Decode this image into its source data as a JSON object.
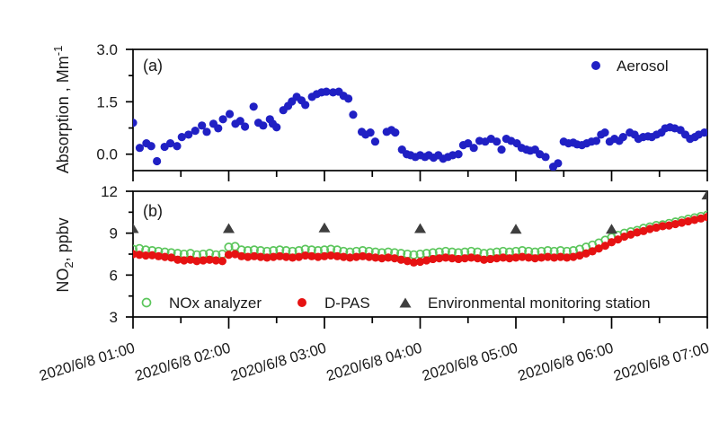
{
  "figure": {
    "background": "#ffffff",
    "axis_color": "#000000",
    "text_color": "#1a1a1a"
  },
  "x_axis": {
    "tick_hours": [
      1,
      2,
      3,
      4,
      5,
      6,
      7
    ],
    "minor_tick_hours": [
      1.5,
      2.5,
      3.5,
      4.5,
      5.5,
      6.5
    ],
    "tick_labels": [
      "2020/6/8 01:00",
      "2020/6/8 02:00",
      "2020/6/8 03:00",
      "2020/6/8 04:00",
      "2020/6/8 05:00",
      "2020/6/8 06:00",
      "2020/6/8 07:00"
    ],
    "label_rotation_deg": -17
  },
  "panels": {
    "a": {
      "tag": "(a)",
      "ylabel": {
        "prefix": "Absorption , Mm",
        "sup": "-1"
      },
      "yticks": [
        {
          "label": "3.0",
          "value": 3.0
        },
        {
          "label": "1.5",
          "value": 1.5
        },
        {
          "label": "0.0",
          "value": 0.0
        }
      ],
      "minor_yticks": [
        2.25,
        0.75
      ],
      "legend": [
        {
          "label": "Aerosol",
          "marker": "circle",
          "color": "#2020c4"
        }
      ]
    },
    "b": {
      "tag": "(b)",
      "ylabel": {
        "prefix": "NO",
        "sub": "2",
        "suffix": ", ppbv"
      },
      "yticks": [
        {
          "label": "12",
          "value": 12
        },
        {
          "label": "9",
          "value": 9
        },
        {
          "label": "6",
          "value": 6
        },
        {
          "label": "3",
          "value": 3
        }
      ],
      "minor_yticks": [
        10.5,
        7.5,
        4.5
      ],
      "legend": [
        {
          "label": "NOx analyzer",
          "marker": "open-circle",
          "color": "#5cc65c"
        },
        {
          "label": "D-PAS",
          "marker": "circle",
          "color": "#e61212"
        },
        {
          "label": "Environmental monitoring station",
          "marker": "triangle",
          "color": "#3e3e3e"
        }
      ]
    }
  },
  "chart_data": [
    {
      "type": "scatter",
      "panel": "a",
      "ylabel": "Absorption , Mm^-1",
      "xlim_hours": [
        1,
        7
      ],
      "ylim": [
        -0.47,
        3.0
      ],
      "grid": false,
      "legend_position": "top-right-inside",
      "series": [
        {
          "name": "Aerosol",
          "marker": "circle",
          "fill": "#2020c4",
          "points": [
            [
              1.0,
              0.9
            ],
            [
              1.07,
              0.18
            ],
            [
              1.14,
              0.31
            ],
            [
              1.19,
              0.23
            ],
            [
              1.25,
              -0.2
            ],
            [
              1.33,
              0.21
            ],
            [
              1.39,
              0.31
            ],
            [
              1.46,
              0.23
            ],
            [
              1.51,
              0.49
            ],
            [
              1.58,
              0.56
            ],
            [
              1.65,
              0.67
            ],
            [
              1.72,
              0.82
            ],
            [
              1.77,
              0.64
            ],
            [
              1.84,
              0.87
            ],
            [
              1.89,
              0.74
            ],
            [
              1.94,
              1.0
            ],
            [
              2.01,
              1.15
            ],
            [
              2.07,
              0.87
            ],
            [
              2.12,
              0.95
            ],
            [
              2.17,
              0.79
            ],
            [
              2.26,
              1.36
            ],
            [
              2.31,
              0.9
            ],
            [
              2.36,
              0.82
            ],
            [
              2.43,
              1.0
            ],
            [
              2.46,
              0.87
            ],
            [
              2.5,
              0.77
            ],
            [
              2.57,
              1.26
            ],
            [
              2.62,
              1.38
            ],
            [
              2.66,
              1.51
            ],
            [
              2.71,
              1.64
            ],
            [
              2.76,
              1.54
            ],
            [
              2.8,
              1.41
            ],
            [
              2.87,
              1.64
            ],
            [
              2.92,
              1.72
            ],
            [
              2.97,
              1.77
            ],
            [
              3.02,
              1.79
            ],
            [
              3.09,
              1.77
            ],
            [
              3.15,
              1.79
            ],
            [
              3.2,
              1.67
            ],
            [
              3.25,
              1.59
            ],
            [
              3.3,
              1.13
            ],
            [
              3.39,
              0.64
            ],
            [
              3.43,
              0.56
            ],
            [
              3.48,
              0.62
            ],
            [
              3.53,
              0.36
            ],
            [
              3.65,
              0.64
            ],
            [
              3.7,
              0.69
            ],
            [
              3.74,
              0.62
            ],
            [
              3.81,
              0.13
            ],
            [
              3.86,
              0.0
            ],
            [
              3.9,
              -0.03
            ],
            [
              3.95,
              -0.08
            ],
            [
              4.0,
              -0.03
            ],
            [
              4.05,
              -0.08
            ],
            [
              4.09,
              -0.03
            ],
            [
              4.14,
              -0.1
            ],
            [
              4.19,
              -0.03
            ],
            [
              4.24,
              -0.13
            ],
            [
              4.29,
              -0.08
            ],
            [
              4.34,
              -0.03
            ],
            [
              4.4,
              0.0
            ],
            [
              4.45,
              0.26
            ],
            [
              4.5,
              0.31
            ],
            [
              4.56,
              0.18
            ],
            [
              4.62,
              0.38
            ],
            [
              4.68,
              0.36
            ],
            [
              4.74,
              0.44
            ],
            [
              4.8,
              0.36
            ],
            [
              4.85,
              0.13
            ],
            [
              4.9,
              0.44
            ],
            [
              4.95,
              0.38
            ],
            [
              5.01,
              0.31
            ],
            [
              5.06,
              0.18
            ],
            [
              5.11,
              0.13
            ],
            [
              5.15,
              0.1
            ],
            [
              5.2,
              0.13
            ],
            [
              5.25,
              0.0
            ],
            [
              5.31,
              -0.08
            ],
            [
              5.39,
              -0.36
            ],
            [
              5.44,
              -0.26
            ],
            [
              5.5,
              0.36
            ],
            [
              5.55,
              0.31
            ],
            [
              5.6,
              0.33
            ],
            [
              5.64,
              0.28
            ],
            [
              5.69,
              0.26
            ],
            [
              5.74,
              0.31
            ],
            [
              5.79,
              0.36
            ],
            [
              5.84,
              0.38
            ],
            [
              5.89,
              0.56
            ],
            [
              5.93,
              0.62
            ],
            [
              5.98,
              0.36
            ],
            [
              6.03,
              0.44
            ],
            [
              6.08,
              0.38
            ],
            [
              6.12,
              0.49
            ],
            [
              6.19,
              0.62
            ],
            [
              6.24,
              0.56
            ],
            [
              6.28,
              0.44
            ],
            [
              6.33,
              0.49
            ],
            [
              6.38,
              0.51
            ],
            [
              6.42,
              0.49
            ],
            [
              6.47,
              0.56
            ],
            [
              6.52,
              0.62
            ],
            [
              6.56,
              0.74
            ],
            [
              6.61,
              0.77
            ],
            [
              6.66,
              0.74
            ],
            [
              6.72,
              0.69
            ],
            [
              6.77,
              0.56
            ],
            [
              6.82,
              0.44
            ],
            [
              6.87,
              0.49
            ],
            [
              6.91,
              0.56
            ],
            [
              6.97,
              0.62
            ]
          ]
        }
      ]
    },
    {
      "type": "scatter",
      "panel": "b",
      "ylabel": "NO2, ppbv",
      "xlim_hours": [
        1,
        7
      ],
      "ylim": [
        3,
        12
      ],
      "grid": false,
      "legend_position": "bottom-inside",
      "series": [
        {
          "name": "NOx analyzer",
          "marker": "open-circle",
          "stroke": "#5cc65c",
          "x_start_hour": 1,
          "x_step_minutes": 4,
          "values": [
            7.85,
            7.9,
            7.8,
            7.75,
            7.7,
            7.65,
            7.6,
            7.55,
            7.5,
            7.55,
            7.45,
            7.5,
            7.55,
            7.45,
            7.5,
            8.0,
            8.05,
            7.8,
            7.75,
            7.8,
            7.75,
            7.7,
            7.75,
            7.8,
            7.75,
            7.7,
            7.75,
            7.85,
            7.8,
            7.75,
            7.8,
            7.85,
            7.8,
            7.7,
            7.65,
            7.7,
            7.75,
            7.7,
            7.65,
            7.6,
            7.65,
            7.6,
            7.55,
            7.5,
            7.45,
            7.5,
            7.55,
            7.6,
            7.65,
            7.7,
            7.65,
            7.6,
            7.65,
            7.7,
            7.65,
            7.55,
            7.6,
            7.65,
            7.7,
            7.65,
            7.7,
            7.75,
            7.7,
            7.65,
            7.7,
            7.75,
            7.7,
            7.75,
            7.7,
            7.75,
            7.85,
            8.0,
            8.15,
            8.3,
            8.5,
            8.7,
            8.85,
            9.0,
            9.1,
            9.2,
            9.35,
            9.45,
            9.55,
            9.6,
            9.7,
            9.8,
            9.9,
            10.0,
            10.1,
            10.2,
            10.3
          ]
        },
        {
          "name": "D-PAS",
          "marker": "circle",
          "fill": "#e61212",
          "x_start_hour": 1,
          "x_step_minutes": 4,
          "values": [
            7.5,
            7.45,
            7.4,
            7.42,
            7.35,
            7.3,
            7.25,
            7.1,
            7.05,
            7.1,
            7.0,
            7.05,
            7.1,
            7.05,
            7.0,
            7.45,
            7.5,
            7.35,
            7.3,
            7.35,
            7.3,
            7.25,
            7.3,
            7.35,
            7.3,
            7.25,
            7.3,
            7.4,
            7.35,
            7.3,
            7.35,
            7.4,
            7.35,
            7.3,
            7.25,
            7.3,
            7.35,
            7.3,
            7.25,
            7.2,
            7.25,
            7.2,
            7.1,
            7.0,
            6.9,
            6.95,
            7.05,
            7.15,
            7.2,
            7.25,
            7.2,
            7.15,
            7.2,
            7.25,
            7.2,
            7.1,
            7.15,
            7.2,
            7.25,
            7.2,
            7.25,
            7.3,
            7.25,
            7.2,
            7.25,
            7.3,
            7.25,
            7.3,
            7.25,
            7.3,
            7.4,
            7.55,
            7.7,
            7.9,
            8.1,
            8.35,
            8.55,
            8.75,
            8.9,
            9.05,
            9.15,
            9.3,
            9.4,
            9.5,
            9.55,
            9.65,
            9.75,
            9.85,
            9.95,
            10.05,
            10.15
          ]
        },
        {
          "name": "Environmental monitoring station",
          "marker": "triangle",
          "fill": "#3e3e3e",
          "points": [
            [
              1,
              9.3
            ],
            [
              2,
              9.3
            ],
            [
              3,
              9.35
            ],
            [
              4,
              9.3
            ],
            [
              5,
              9.25
            ],
            [
              6,
              9.25
            ],
            [
              7,
              11.7
            ]
          ]
        }
      ]
    }
  ]
}
